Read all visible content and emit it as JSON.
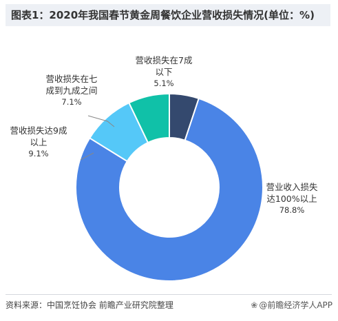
{
  "title": "图表1：2020年我国春节黄金周餐饮企业营收损失情况(单位：%)",
  "source": "资料来源：中国烹饪协会 前瞻产业研究院整理",
  "brand": "@前瞻经济学人APP",
  "colors": {
    "over100": "#4a84e6",
    "over90": "#55c8f8",
    "70to90": "#10c1a8",
    "within70": "#34496e",
    "leader": "#888888"
  },
  "chart_data": {
    "type": "pie",
    "style": "donut",
    "title": "图表1：2020年我国春节黄金周餐饮企业营收损失情况(单位：%)",
    "slices": [
      {
        "key": "within70",
        "label_lines": [
          "营收损失在7成",
          "以下"
        ],
        "value": 5.1,
        "value_label": "5.1%"
      },
      {
        "key": "over100",
        "label_lines": [
          "营业收入损失",
          "达100%以上"
        ],
        "value": 78.8,
        "value_label": "78.8%"
      },
      {
        "key": "over90",
        "label_lines": [
          "营收损失达9成",
          "以上"
        ],
        "value": 9.1,
        "value_label": "9.1%"
      },
      {
        "key": "70to90",
        "label_lines": [
          "营收损失在七",
          "成到九成之间"
        ],
        "value": 7.1,
        "value_label": "7.1%"
      }
    ]
  }
}
